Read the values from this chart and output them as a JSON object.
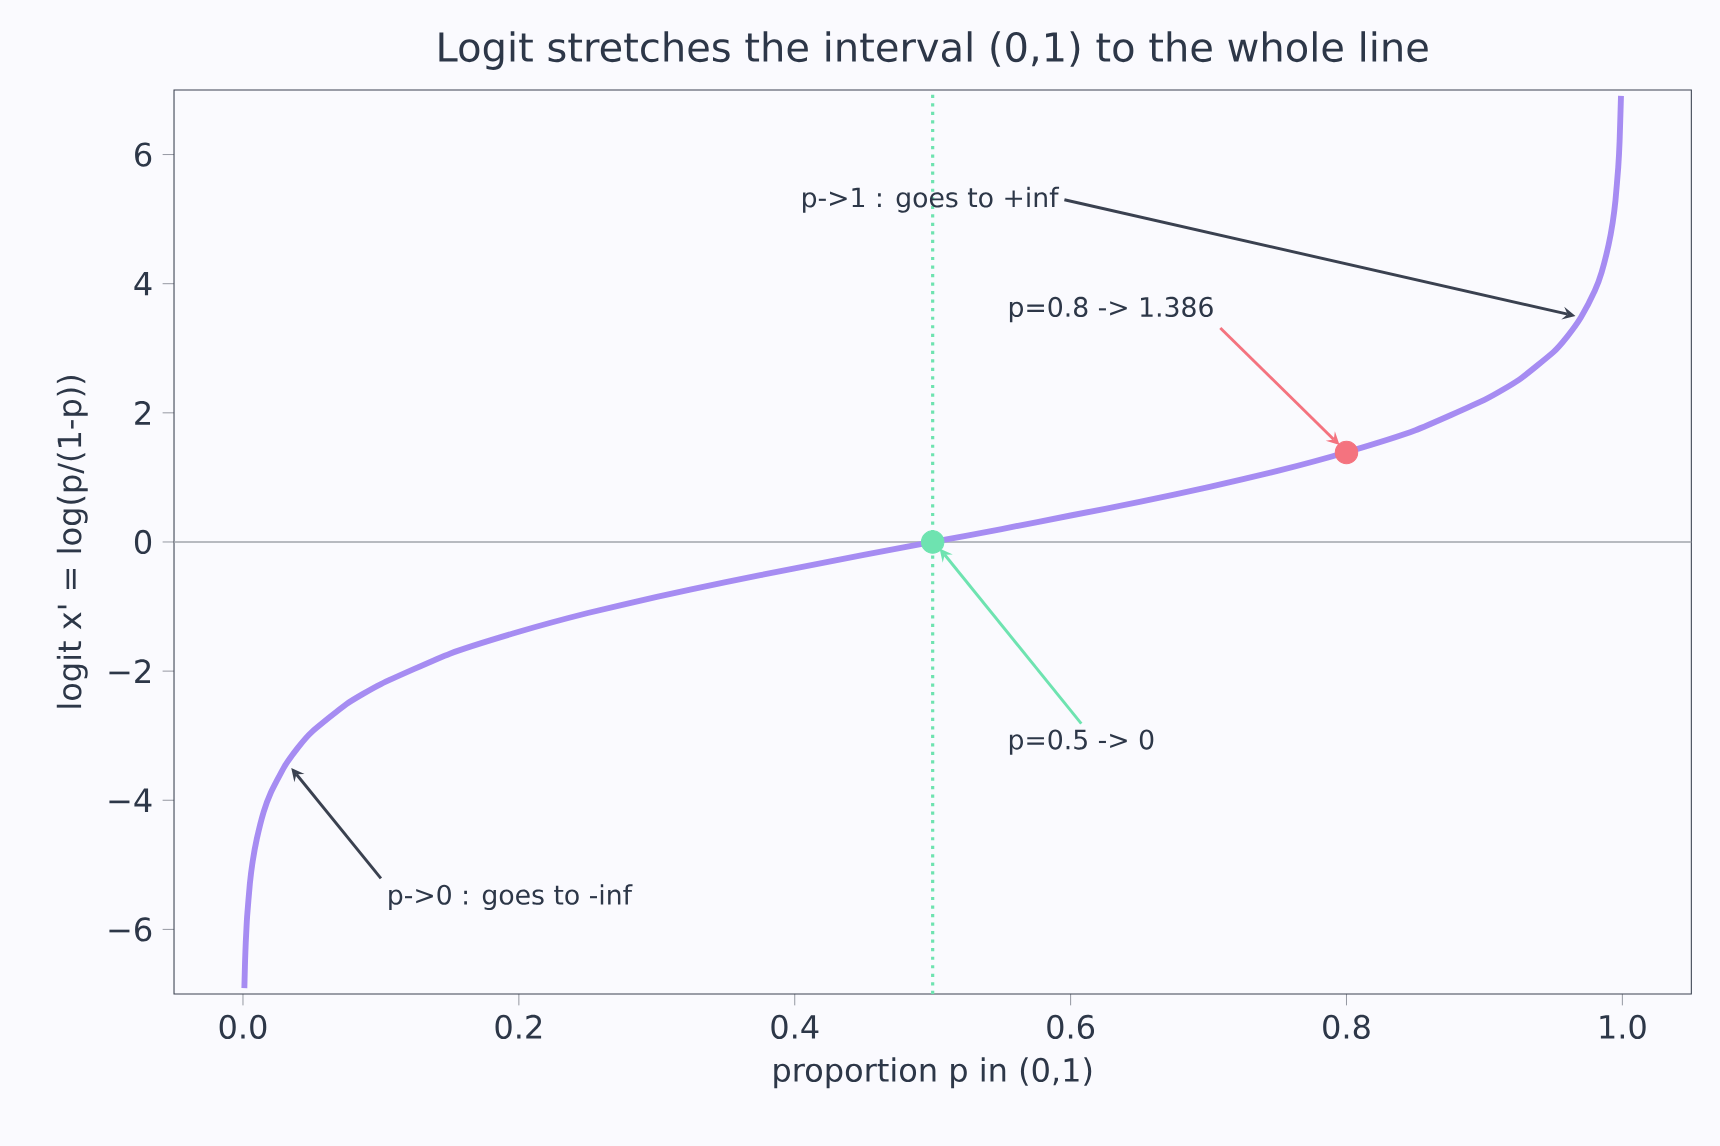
{
  "chart_data": {
    "type": "line",
    "title": "Logit stretches the interval (0,1) to the whole line",
    "xlabel": "proportion  p  in (0,1)",
    "ylabel": "logit  x' = log(p/(1-p))",
    "xlim": [
      -0.05,
      1.05
    ],
    "ylim": [
      -7,
      7
    ],
    "xticks": [
      {
        "value": 0.0,
        "label": "0.0"
      },
      0.2,
      0.4,
      0.6,
      0.8,
      {
        "value": 1.0,
        "label": "1.0"
      }
    ],
    "yticks": [
      {
        "value": -6,
        "label": "−6"
      },
      {
        "value": -4,
        "label": "−4"
      },
      {
        "value": -2,
        "label": "−2"
      },
      0,
      2,
      4,
      6
    ],
    "grid": false,
    "line_style": "solid",
    "series": [
      {
        "color": "#a68cf2",
        "x": [
          0.001,
          0.0015,
          0.002,
          0.003,
          0.005,
          0.007,
          0.01,
          0.015,
          0.02,
          0.03,
          0.04,
          0.05,
          0.075,
          0.1,
          0.15,
          0.2,
          0.25,
          0.3,
          0.35,
          0.4,
          0.45,
          0.5,
          0.55,
          0.6,
          0.65,
          0.7,
          0.75,
          0.8,
          0.85,
          0.9,
          0.925,
          0.95,
          0.96,
          0.97,
          0.98,
          0.985,
          0.99,
          0.993,
          0.995,
          0.997,
          0.998,
          0.999
        ],
        "values": [
          -6.91,
          -6.5,
          -6.21,
          -5.8,
          -5.29,
          -4.95,
          -4.6,
          -4.18,
          -3.89,
          -3.48,
          -3.18,
          -2.94,
          -2.51,
          -2.2,
          -1.73,
          -1.39,
          -1.1,
          -0.85,
          -0.62,
          -0.41,
          -0.2,
          0,
          0.2,
          0.41,
          0.62,
          0.85,
          1.1,
          1.39,
          1.73,
          2.2,
          2.51,
          2.94,
          3.18,
          3.48,
          3.89,
          4.18,
          4.6,
          4.95,
          5.29,
          5.8,
          6.21,
          6.91
        ]
      },
      {
        "type": "scatter",
        "color": "#f4737f",
        "marker": "circle",
        "x": [
          0.8
        ],
        "values": [
          1.386
        ]
      },
      {
        "type": "scatter",
        "color": "#6ee3b0",
        "marker": "circle",
        "x": [
          0.5
        ],
        "values": [
          0
        ]
      }
    ],
    "ref_lines": [
      {
        "axis": "x",
        "value": 0.5,
        "color": "#6ee3b0",
        "line_style": "dotted"
      },
      {
        "axis": "y",
        "value": 0,
        "color": "#a0a4ab",
        "line_style": "solid"
      }
    ],
    "annotations": [
      {
        "text": "p->1 : goes to +inf",
        "x": 0.966,
        "y": 3.5
      },
      {
        "text": "p=0.8 -> 1.386",
        "x": 0.795,
        "y": 1.5
      },
      {
        "text": "p=0.5 -> 0",
        "x": 0.505,
        "y": -0.1
      },
      {
        "text": "p->0 : goes to -inf",
        "x": 0.035,
        "y": -3.5
      }
    ]
  }
}
